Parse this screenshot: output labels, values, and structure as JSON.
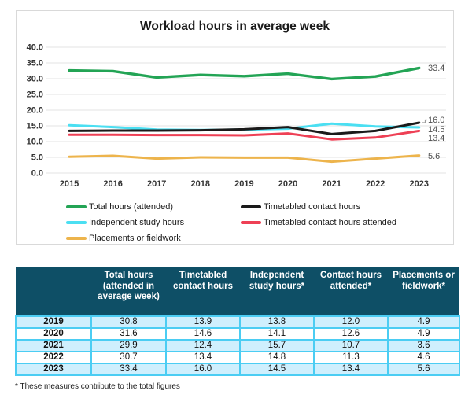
{
  "chart": {
    "title": "Workload hours in average week",
    "legend": [
      {
        "label": "Total hours (attended)",
        "color": "#23a455"
      },
      {
        "label": "Independent study hours",
        "color": "#4bdff2"
      },
      {
        "label": "Placements or fieldwork",
        "color": "#edb44c"
      },
      {
        "label": "Timetabled contact hours",
        "color": "#1a1a1a"
      },
      {
        "label": "Timetabled contact hours attended",
        "color": "#ee4055"
      }
    ]
  },
  "chart_data": {
    "type": "line",
    "title": "Workload hours in average week",
    "x": [
      "2015",
      "2016",
      "2017",
      "2018",
      "2019",
      "2020",
      "2021",
      "2022",
      "2023"
    ],
    "y_ticks": [
      "40.0",
      "35.0",
      "30.0",
      "25.0",
      "20.0",
      "15.0",
      "10.0",
      "5.0",
      "0.0"
    ],
    "ylim": [
      0,
      40
    ],
    "grid": true,
    "legend_position": "bottom",
    "series": [
      {
        "name": "Total hours (attended)",
        "color": "#23a455",
        "values": [
          32.6,
          32.4,
          30.4,
          31.2,
          30.8,
          31.6,
          29.9,
          30.7,
          33.4
        ],
        "end_label": "33.4"
      },
      {
        "name": "Independent study hours",
        "color": "#4bdff2",
        "values": [
          15.2,
          14.6,
          13.8,
          13.7,
          13.8,
          14.1,
          15.7,
          14.8,
          14.5
        ],
        "end_label": "14.5"
      },
      {
        "name": "Timetabled contact hours attended",
        "color": "#ee4055",
        "values": [
          12.2,
          12.2,
          12.1,
          12.1,
          12.0,
          12.6,
          10.7,
          11.3,
          13.4
        ],
        "end_label": "13.4"
      },
      {
        "name": "Placements or fieldwork",
        "color": "#edb44c",
        "values": [
          5.2,
          5.5,
          4.6,
          5.0,
          4.9,
          4.9,
          3.6,
          4.6,
          5.6
        ],
        "end_label": "5.6"
      },
      {
        "name": "Timetabled contact hours",
        "color": "#1a1a1a",
        "values": [
          13.4,
          13.5,
          13.5,
          13.6,
          13.9,
          14.6,
          12.4,
          13.4,
          16.0
        ],
        "end_label": "16.0"
      }
    ]
  },
  "table": {
    "headers": [
      "",
      "Total hours (attended in average week)",
      "Timetabled contact hours",
      "Independent study hours*",
      "Contact hours attended*",
      "Placements or fieldwork*"
    ],
    "rows": [
      {
        "year": "2019",
        "values": [
          "30.8",
          "13.9",
          "13.8",
          "12.0",
          "4.9"
        ]
      },
      {
        "year": "2020",
        "values": [
          "31.6",
          "14.6",
          "14.1",
          "12.6",
          "4.9"
        ]
      },
      {
        "year": "2021",
        "values": [
          "29.9",
          "12.4",
          "15.7",
          "10.7",
          "3.6"
        ]
      },
      {
        "year": "2022",
        "values": [
          "30.7",
          "13.4",
          "14.8",
          "11.3",
          "4.6"
        ]
      },
      {
        "year": "2023",
        "values": [
          "33.4",
          "16.0",
          "14.5",
          "13.4",
          "5.6"
        ]
      }
    ],
    "footnote": "* These measures contribute to the total figures"
  },
  "colors": {
    "table_header_bg": "#0e4f66",
    "table_row_alt": "#cfeffd",
    "table_border": "#4bcdf3",
    "gridline": "#e3e3e3",
    "chart_border": "#d9d9d9",
    "axis_text": "#333333",
    "end_label_text": "#4d4d4d"
  }
}
